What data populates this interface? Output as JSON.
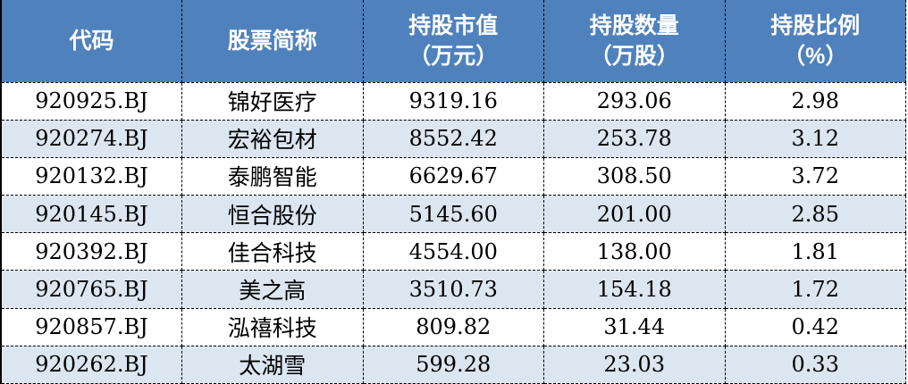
{
  "table": {
    "columns": [
      {
        "label": "代码",
        "unit": ""
      },
      {
        "label": "股票简称",
        "unit": ""
      },
      {
        "label": "持股市值",
        "unit": "（万元）"
      },
      {
        "label": "持股数量",
        "unit": "（万股）"
      },
      {
        "label": "持股比例",
        "unit": "（%）"
      }
    ],
    "rows": [
      {
        "code": "920925.BJ",
        "name": "锦好医疗",
        "market_value": "9319.16",
        "shares": "293.06",
        "ratio": "2.98"
      },
      {
        "code": "920274.BJ",
        "name": "宏裕包材",
        "market_value": "8552.42",
        "shares": "253.78",
        "ratio": "3.12"
      },
      {
        "code": "920132.BJ",
        "name": "泰鹏智能",
        "market_value": "6629.67",
        "shares": "308.50",
        "ratio": "3.72"
      },
      {
        "code": "920145.BJ",
        "name": "恒合股份",
        "market_value": "5145.60",
        "shares": "201.00",
        "ratio": "2.85"
      },
      {
        "code": "920392.BJ",
        "name": "佳合科技",
        "market_value": "4554.00",
        "shares": "138.00",
        "ratio": "1.81"
      },
      {
        "code": "920765.BJ",
        "name": "美之高",
        "market_value": "3510.73",
        "shares": "154.18",
        "ratio": "1.72"
      },
      {
        "code": "920857.BJ",
        "name": "泓禧科技",
        "market_value": "809.82",
        "shares": "31.44",
        "ratio": "0.42"
      },
      {
        "code": "920262.BJ",
        "name": "太湖雪",
        "market_value": "599.28",
        "shares": "23.03",
        "ratio": "0.33"
      }
    ]
  },
  "colors": {
    "header_bg": "#4F81BD",
    "header_text": "#FFFFFF",
    "row_stripe_bg": "#DCE6F1",
    "row_bg": "#FFFFFF",
    "border": "#000000",
    "body_text": "#000000"
  },
  "chart_data": {
    "type": "table",
    "columns": [
      "代码",
      "股票简称",
      "持股市值（万元）",
      "持股数量（万股）",
      "持股比例（%）"
    ],
    "rows": [
      [
        "920925.BJ",
        "锦好医疗",
        9319.16,
        293.06,
        2.98
      ],
      [
        "920274.BJ",
        "宏裕包材",
        8552.42,
        253.78,
        3.12
      ],
      [
        "920132.BJ",
        "泰鹏智能",
        6629.67,
        308.5,
        3.72
      ],
      [
        "920145.BJ",
        "恒合股份",
        5145.6,
        201.0,
        2.85
      ],
      [
        "920392.BJ",
        "佳合科技",
        4554.0,
        138.0,
        1.81
      ],
      [
        "920765.BJ",
        "美之高",
        3510.73,
        154.18,
        1.72
      ],
      [
        "920857.BJ",
        "泓禧科技",
        809.82,
        31.44,
        0.42
      ],
      [
        "920262.BJ",
        "太湖雪",
        599.28,
        23.03,
        0.33
      ]
    ],
    "layout": {
      "header_style": "blue-fill-white-bold-text",
      "row_striping": "alternate-light-blue",
      "grid": "black-dashed-borders",
      "alignment": "center-all-cells"
    }
  }
}
